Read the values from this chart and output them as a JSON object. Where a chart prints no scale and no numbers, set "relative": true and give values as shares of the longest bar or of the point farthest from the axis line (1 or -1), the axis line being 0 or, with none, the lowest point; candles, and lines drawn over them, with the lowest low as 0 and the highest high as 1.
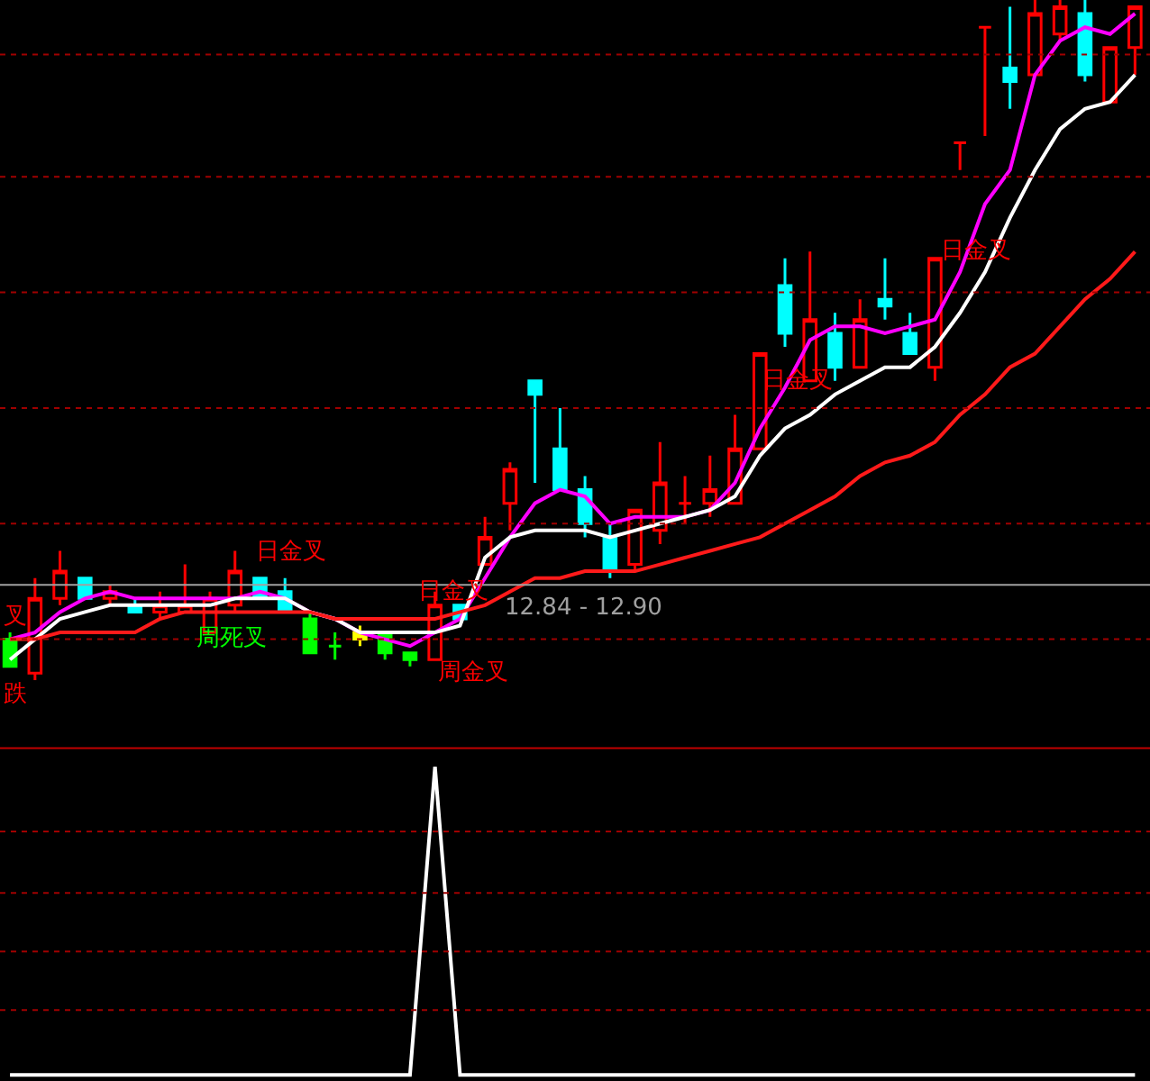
{
  "chart_data": [
    {
      "type": "candlestick",
      "relative": true,
      "tick_labels": false,
      "categories": [
        null,
        null,
        null,
        null,
        null,
        null,
        null,
        null,
        null,
        null,
        null,
        null,
        null,
        null,
        null,
        null,
        null,
        null,
        null,
        null,
        null,
        null,
        null,
        null,
        null,
        null,
        null,
        null,
        null,
        null,
        null,
        null,
        null,
        null,
        null,
        null,
        null,
        null,
        null,
        null,
        null,
        null,
        null,
        null,
        null,
        null
      ],
      "ohlc": [
        [
          0.06,
          0.07,
          0.02,
          0.02
        ],
        [
          0.01,
          0.15,
          0,
          0.12
        ],
        [
          0.12,
          0.19,
          0.11,
          0.16
        ],
        [
          0.15,
          0.15,
          0.12,
          0.12
        ],
        [
          0.12,
          0.14,
          0.11,
          0.13
        ],
        [
          0.11,
          0.12,
          0.1,
          0.1
        ],
        [
          0.1,
          0.13,
          0.09,
          0.11
        ],
        [
          0.1,
          0.17,
          0.1,
          0.11
        ],
        [
          0.07,
          0.13,
          0.07,
          0.12
        ],
        [
          0.11,
          0.19,
          0.1,
          0.16
        ],
        [
          0.15,
          0.15,
          0.12,
          0.12
        ],
        [
          0.13,
          0.15,
          0.1,
          0.1
        ],
        [
          0.09,
          0.1,
          0.04,
          0.04
        ],
        [
          0.05,
          0.07,
          0.03,
          0.05
        ],
        [
          0.07,
          0.08,
          0.05,
          0.06
        ],
        [
          0.07,
          0.07,
          0.03,
          0.04
        ],
        [
          0.04,
          0.04,
          0.02,
          0.03
        ],
        [
          0.03,
          0.13,
          0.03,
          0.11
        ],
        [
          0.11,
          0.11,
          0.09,
          0.09
        ],
        [
          0.17,
          0.24,
          0.17,
          0.21
        ],
        [
          0.26,
          0.32,
          0.22,
          0.31
        ],
        [
          0.44,
          0.44,
          0.29,
          0.42
        ],
        [
          0.34,
          0.4,
          0.28,
          0.28
        ],
        [
          0.28,
          0.3,
          0.21,
          0.23
        ],
        [
          0.21,
          0.23,
          0.15,
          0.16
        ],
        [
          0.17,
          0.25,
          0.16,
          0.25
        ],
        [
          0.22,
          0.35,
          0.2,
          0.29
        ],
        [
          0.26,
          0.3,
          0.23,
          0.26
        ],
        [
          0.26,
          0.33,
          0.24,
          0.28
        ],
        [
          0.26,
          0.39,
          0.26,
          0.34
        ],
        [
          0.34,
          0.48,
          0.34,
          0.48
        ],
        [
          0.58,
          0.62,
          0.49,
          0.51
        ],
        [
          0.44,
          0.63,
          0.44,
          0.53
        ],
        [
          0.51,
          0.54,
          0.44,
          0.46
        ],
        [
          0.46,
          0.56,
          0.46,
          0.53
        ],
        [
          0.56,
          0.62,
          0.53,
          0.55
        ],
        [
          0.51,
          0.54,
          0.48,
          0.48
        ],
        [
          0.46,
          0.62,
          0.44,
          0.62
        ],
        [
          0.79,
          0.79,
          0.75,
          0.79
        ],
        [
          0.96,
          0.96,
          0.8,
          0.96
        ],
        [
          0.9,
          0.99,
          0.84,
          0.88
        ],
        [
          0.89,
          1,
          0.89,
          0.98
        ],
        [
          0.95,
          1,
          0.94,
          0.99
        ],
        [
          0.98,
          1,
          0.88,
          0.89
        ],
        [
          0.85,
          0.93,
          0.85,
          0.93
        ],
        [
          0.93,
          0.99,
          0.89,
          0.99
        ]
      ],
      "colors": [
        "#00ff00",
        "#ff0000",
        "#ff0000",
        "#00ffff",
        "#ff0000",
        "#00ffff",
        "#ff0000",
        "#ff0000",
        "#ff0000",
        "#ff0000",
        "#00ffff",
        "#00ffff",
        "#00ff00",
        "#00ff00",
        "#ffff00",
        "#00ff00",
        "#00ff00",
        "#ff0000",
        "#00ffff",
        "#ff0000",
        "#ff0000",
        "#00ffff",
        "#00ffff",
        "#00ffff",
        "#00ffff",
        "#ff0000",
        "#ff0000",
        "#ff0000",
        "#ff0000",
        "#ff0000",
        "#ff0000",
        "#00ffff",
        "#ff0000",
        "#00ffff",
        "#ff0000",
        "#00ffff",
        "#00ffff",
        "#ff0000",
        "#ff0000",
        "#ff0000",
        "#00ffff",
        "#ff0000",
        "#ff0000",
        "#00ffff",
        "#ff0000",
        "#ff0000"
      ],
      "series": [
        {
          "type": "line",
          "color": "#ff00ff",
          "values": [
            0.06,
            0.07,
            0.1,
            0.12,
            0.13,
            0.12,
            0.12,
            0.12,
            0.12,
            0.12,
            0.13,
            0.12,
            0.1,
            0.09,
            0.07,
            0.06,
            0.05,
            0.07,
            0.09,
            0.15,
            0.21,
            0.26,
            0.28,
            0.27,
            0.23,
            0.24,
            0.24,
            0.24,
            0.25,
            0.29,
            0.37,
            0.43,
            0.5,
            0.52,
            0.52,
            0.51,
            0.52,
            0.53,
            0.6,
            0.7,
            0.75,
            0.89,
            0.94,
            0.96,
            0.95,
            0.98
          ]
        },
        {
          "type": "line",
          "color": "#ffffff",
          "values": [
            0.03,
            0.06,
            0.09,
            0.1,
            0.11,
            0.11,
            0.11,
            0.11,
            0.11,
            0.12,
            0.12,
            0.12,
            0.1,
            0.09,
            0.07,
            0.07,
            0.07,
            0.07,
            0.08,
            0.18,
            0.21,
            0.22,
            0.22,
            0.22,
            0.21,
            0.22,
            0.23,
            0.24,
            0.25,
            0.27,
            0.33,
            0.37,
            0.39,
            0.42,
            0.44,
            0.46,
            0.46,
            0.49,
            0.54,
            0.6,
            0.68,
            0.75,
            0.81,
            0.84,
            0.85,
            0.89
          ]
        },
        {
          "type": "line",
          "color": "#ff1a1a",
          "values": [
            0.06,
            0.06,
            0.07,
            0.07,
            0.07,
            0.07,
            0.09,
            0.1,
            0.1,
            0.1,
            0.1,
            0.1,
            0.1,
            0.09,
            0.09,
            0.09,
            0.09,
            0.09,
            0.1,
            0.11,
            0.13,
            0.15,
            0.15,
            0.16,
            0.16,
            0.16,
            0.17,
            0.18,
            0.19,
            0.2,
            0.21,
            0.23,
            0.25,
            0.27,
            0.3,
            0.32,
            0.33,
            0.35,
            0.39,
            0.42,
            0.46,
            0.48,
            0.52,
            0.56,
            0.59,
            0.63
          ]
        }
      ],
      "ref_lines": [
        {
          "axis": "y",
          "value": 0.14,
          "color": "#a0a0a0",
          "line_style": "solid"
        },
        {
          "axis": "y",
          "value": 0.92,
          "color": "#a00000",
          "line_style": "dotted"
        },
        {
          "axis": "y",
          "value": 0.74,
          "color": "#a00000",
          "line_style": "dotted"
        },
        {
          "axis": "y",
          "value": 0.57,
          "color": "#a00000",
          "line_style": "dotted"
        },
        {
          "axis": "y",
          "value": 0.4,
          "color": "#a00000",
          "line_style": "dotted"
        },
        {
          "axis": "y",
          "value": 0.23,
          "color": "#a00000",
          "line_style": "dotted"
        },
        {
          "axis": "y",
          "value": 0.06,
          "color": "#a00000",
          "line_style": "dotted"
        }
      ],
      "annotations": [
        "日金叉",
        "叉",
        "周死叉",
        "日金叉",
        "周金叉",
        "跌",
        "日金叉",
        "日金叉",
        "12.84 - 12.90"
      ]
    },
    {
      "type": "line",
      "relative": true,
      "tick_labels": false,
      "ref_lines": [
        {
          "axis": "y",
          "value": 0.79,
          "color": "#a00000",
          "line_style": "dotted"
        },
        {
          "axis": "y",
          "value": 0.59,
          "color": "#a00000",
          "line_style": "dotted"
        },
        {
          "axis": "y",
          "value": 0.4,
          "color": "#a00000",
          "line_style": "dotted"
        },
        {
          "axis": "y",
          "value": 0.21,
          "color": "#a00000",
          "line_style": "dotted"
        }
      ],
      "categories": [
        null,
        null,
        null,
        null,
        null,
        null,
        null,
        null,
        null,
        null,
        null,
        null,
        null,
        null,
        null,
        null,
        null,
        null,
        null,
        null,
        null,
        null,
        null,
        null,
        null,
        null,
        null,
        null,
        null,
        null,
        null,
        null,
        null,
        null,
        null,
        null,
        null,
        null,
        null,
        null,
        null,
        null,
        null,
        null,
        null,
        null
      ],
      "series": [
        {
          "color": "#ffffff",
          "values": [
            0,
            0,
            0,
            0,
            0,
            0,
            0,
            0,
            0,
            0,
            0,
            0,
            0,
            0,
            0,
            0,
            0,
            1,
            0,
            0,
            0,
            0,
            0,
            0,
            0,
            0,
            0,
            0,
            0,
            0,
            0,
            0,
            0,
            0,
            0,
            0,
            0,
            0,
            0,
            0,
            0,
            0,
            0,
            0,
            0,
            0
          ]
        }
      ]
    }
  ]
}
